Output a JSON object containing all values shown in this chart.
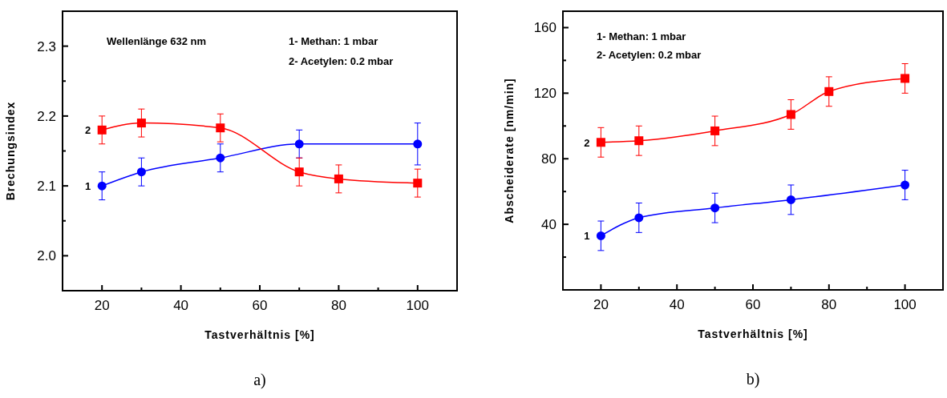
{
  "chart_data": [
    {
      "type": "line",
      "title": "a)",
      "xlabel": "Tastverhältnis [%]",
      "ylabel": "Brechungsindex",
      "xlim": [
        10,
        110
      ],
      "ylim": [
        1.95,
        2.35
      ],
      "xticks": [
        20,
        {
          "value": 30,
          "label": null
        },
        40,
        {
          "value": 50,
          "label": null
        },
        60,
        {
          "value": 70,
          "label": null
        },
        80,
        {
          "value": 90,
          "label": null
        },
        100
      ],
      "yticks": [
        "2.0",
        {
          "value": 2.05,
          "label": null
        },
        {
          "value": 2.1,
          "label": "2.1"
        },
        {
          "value": 2.15,
          "label": null
        },
        {
          "value": 2.2,
          "label": "2.2"
        },
        {
          "value": 2.25,
          "label": null
        },
        {
          "value": 2.3,
          "label": "2.3"
        }
      ],
      "annotations": [
        "Wellenlänge 632 nm",
        "1- Methan: 1 mbar",
        "2- Acetylen: 0.2 mbar"
      ],
      "grid": false,
      "line_style": "solid",
      "series": [
        {
          "name": "1",
          "color": "#0000ff",
          "marker": "circle",
          "x": [
            20,
            30,
            50,
            70,
            100
          ],
          "values": [
            2.1,
            2.12,
            2.14,
            2.16,
            2.16
          ],
          "errors": [
            0.02,
            0.02,
            0.02,
            0.02,
            0.03
          ]
        },
        {
          "name": "2",
          "color": "#ff0000",
          "marker": "square",
          "x": [
            20,
            30,
            50,
            70,
            80,
            100
          ],
          "values": [
            2.18,
            2.19,
            2.183,
            2.12,
            2.11,
            2.104
          ],
          "errors": [
            0.02,
            0.02,
            0.02,
            0.02,
            0.02,
            0.02
          ]
        }
      ]
    },
    {
      "type": "line",
      "title": "b)",
      "xlabel": "Tastverhältnis [%]",
      "ylabel": "Abscheiderate [nm/min]",
      "xlim": [
        10,
        110
      ],
      "ylim": [
        0,
        170
      ],
      "xticks": [
        20,
        {
          "value": 30,
          "label": null
        },
        40,
        {
          "value": 50,
          "label": null
        },
        60,
        {
          "value": 70,
          "label": null
        },
        80,
        {
          "value": 90,
          "label": null
        },
        100
      ],
      "yticks": [
        {
          "value": 20,
          "label": null
        },
        40,
        {
          "value": 60,
          "label": null
        },
        80,
        {
          "value": 100,
          "label": null
        },
        120,
        {
          "value": 140,
          "label": null
        },
        160
      ],
      "annotations": [
        "1- Methan: 1 mbar",
        "2- Acetylen: 0.2 mbar"
      ],
      "grid": false,
      "line_style": "solid",
      "series": [
        {
          "name": "1",
          "color": "#0000ff",
          "marker": "circle",
          "x": [
            20,
            30,
            50,
            70,
            100
          ],
          "values": [
            33,
            44,
            50,
            55,
            64
          ],
          "errors": [
            9,
            9,
            9,
            9,
            9
          ]
        },
        {
          "name": "2",
          "color": "#ff0000",
          "marker": "square",
          "x": [
            20,
            30,
            50,
            70,
            80,
            100
          ],
          "values": [
            90,
            91,
            97,
            107,
            121,
            129
          ],
          "errors": [
            9,
            9,
            9,
            9,
            9,
            9
          ]
        }
      ]
    }
  ]
}
